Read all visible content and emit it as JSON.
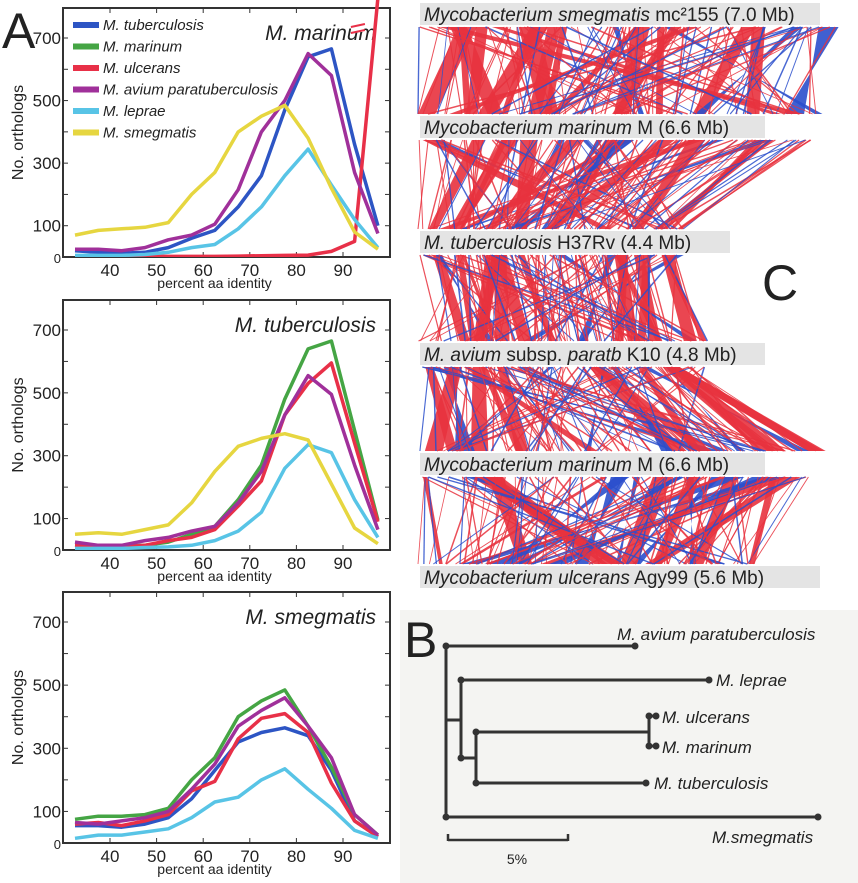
{
  "figure": {
    "panel_labels": {
      "A": "A",
      "B": "B",
      "C": "C"
    }
  },
  "colors": {
    "M. tuberculosis": "#2d55c4",
    "M. marinum": "#45a544",
    "M. ulcerans": "#e83048",
    "M. avium paratuberculosis": "#a0309a",
    "M. leprae": "#58c4e6",
    "M. smegmatis": "#e6d640",
    "synteny_forward": "#e8323e",
    "synteny_reverse": "#2b4fcc",
    "tree": "#333333",
    "label_bar": "#e4e4e4"
  },
  "chart_data": [
    {
      "type": "line",
      "title": "M. marinum",
      "xlabel": "percent aa identity",
      "ylabel": "No. orthologs",
      "xlim": [
        32,
        99
      ],
      "ylim": [
        0,
        800
      ],
      "xticks": [
        40,
        50,
        60,
        70,
        80,
        90
      ],
      "yticks": [
        0,
        100,
        300,
        500,
        700
      ],
      "yminor": [
        200,
        400,
        600
      ],
      "legend": "top-left",
      "legend_entries": [
        "M. tuberculosis",
        "M. marinum",
        "M. ulcerans",
        "M. avium paratuberculosis",
        "M. leprae",
        "M. smegmatis"
      ],
      "annotation": "axis break on M. ulcerans line",
      "x": [
        32.5,
        37.5,
        42.5,
        47.5,
        52.5,
        57.5,
        62.5,
        67.5,
        72.5,
        77.5,
        82.5,
        87.5,
        92.5,
        97.5
      ],
      "series": [
        {
          "name": "M. tuberculosis",
          "values": [
            20,
            15,
            12,
            15,
            30,
            60,
            85,
            160,
            260,
            470,
            640,
            665,
            360,
            100
          ]
        },
        {
          "name": "M. ulcerans",
          "values": [
            2,
            2,
            2,
            2,
            2,
            2,
            2,
            3,
            4,
            5,
            6,
            18,
            50,
            900
          ]
        },
        {
          "name": "M. avium paratuberculosis",
          "values": [
            25,
            25,
            20,
            30,
            55,
            70,
            105,
            215,
            400,
            500,
            650,
            580,
            270,
            75
          ]
        },
        {
          "name": "M. leprae",
          "values": [
            5,
            5,
            5,
            8,
            15,
            30,
            40,
            90,
            160,
            260,
            345,
            230,
            120,
            30
          ]
        },
        {
          "name": "M. smegmatis",
          "values": [
            70,
            85,
            90,
            95,
            110,
            200,
            270,
            400,
            450,
            485,
            380,
            220,
            80,
            25
          ]
        }
      ]
    },
    {
      "type": "line",
      "title": "M. tuberculosis",
      "xlabel": "percent aa identity",
      "ylabel": "No. orthologs",
      "xlim": [
        32,
        99
      ],
      "ylim": [
        0,
        800
      ],
      "xticks": [
        40,
        50,
        60,
        70,
        80,
        90
      ],
      "yticks": [
        0,
        100,
        300,
        500,
        700
      ],
      "yminor": [
        200,
        400,
        600
      ],
      "x": [
        32.5,
        37.5,
        42.5,
        47.5,
        52.5,
        57.5,
        62.5,
        67.5,
        72.5,
        77.5,
        82.5,
        87.5,
        92.5,
        97.5
      ],
      "series": [
        {
          "name": "M. marinum",
          "values": [
            15,
            12,
            12,
            15,
            25,
            50,
            75,
            160,
            270,
            480,
            640,
            665,
            380,
            95
          ]
        },
        {
          "name": "M. ulcerans",
          "values": [
            15,
            12,
            10,
            15,
            30,
            40,
            65,
            140,
            220,
            430,
            530,
            595,
            340,
            90
          ]
        },
        {
          "name": "M. avium paratuberculosis",
          "values": [
            25,
            15,
            15,
            30,
            40,
            60,
            75,
            150,
            250,
            430,
            555,
            495,
            270,
            65
          ]
        },
        {
          "name": "M. leprae",
          "values": [
            5,
            5,
            5,
            8,
            10,
            15,
            30,
            60,
            120,
            260,
            335,
            310,
            160,
            40
          ]
        },
        {
          "name": "M. smegmatis",
          "values": [
            50,
            55,
            50,
            65,
            80,
            150,
            250,
            330,
            355,
            370,
            350,
            210,
            70,
            20
          ]
        }
      ]
    },
    {
      "type": "line",
      "title": "M. smegmatis",
      "xlabel": "percent aa identity",
      "ylabel": "No. orthologs",
      "xlim": [
        32,
        99
      ],
      "ylim": [
        0,
        800
      ],
      "xticks": [
        40,
        50,
        60,
        70,
        80,
        90
      ],
      "yticks": [
        0,
        100,
        300,
        500,
        700
      ],
      "yminor": [
        200,
        400,
        600
      ],
      "x": [
        32.5,
        37.5,
        42.5,
        47.5,
        52.5,
        57.5,
        62.5,
        67.5,
        72.5,
        77.5,
        82.5,
        87.5,
        92.5,
        97.5
      ],
      "series": [
        {
          "name": "M. tuberculosis",
          "values": [
            55,
            55,
            50,
            60,
            80,
            140,
            230,
            320,
            350,
            365,
            340,
            230,
            70,
            20
          ]
        },
        {
          "name": "M. marinum",
          "values": [
            75,
            85,
            85,
            90,
            110,
            200,
            270,
            400,
            450,
            485,
            370,
            240,
            90,
            25
          ]
        },
        {
          "name": "M. ulcerans",
          "values": [
            60,
            65,
            55,
            70,
            90,
            165,
            195,
            330,
            395,
            410,
            350,
            190,
            70,
            20
          ]
        },
        {
          "name": "M. avium paratuberculosis",
          "values": [
            65,
            60,
            70,
            80,
            100,
            170,
            250,
            370,
            420,
            460,
            370,
            270,
            90,
            25
          ]
        },
        {
          "name": "M. leprae",
          "values": [
            15,
            25,
            25,
            35,
            45,
            80,
            130,
            145,
            200,
            235,
            170,
            110,
            40,
            15
          ]
        }
      ]
    }
  ],
  "synteny": {
    "genomes": [
      {
        "label_italic": "Mycobacterium smegmatis",
        "label_rest": " mc²155 (7.0 Mb)"
      },
      {
        "label_italic": "Mycobacterium marinum",
        "label_rest": " M (6.6 Mb)"
      },
      {
        "label_italic": "M. tuberculosis",
        "label_rest": " H37Rv (4.4 Mb)"
      },
      {
        "label_italic": "M. avium",
        "label_rest": " subsp. ",
        "label_italic2": "paratb",
        "label_rest2": " K10 (4.8 Mb)"
      },
      {
        "label_italic": "Mycobacterium marinum",
        "label_rest": " M (6.6 Mb)"
      },
      {
        "label_italic": "Mycobacterium ulcerans",
        "label_rest": " Agy99 (5.6 Mb)"
      }
    ],
    "genome_sizes_mb": [
      7.0,
      6.6,
      4.4,
      4.8,
      6.6,
      5.6
    ]
  },
  "tree": {
    "taxa": [
      "M. avium paratuberculosis",
      "M. leprae",
      "M. ulcerans",
      "M. marinum",
      "M. tuberculosis",
      "M.smegmatis"
    ],
    "scale_label": "5%"
  }
}
